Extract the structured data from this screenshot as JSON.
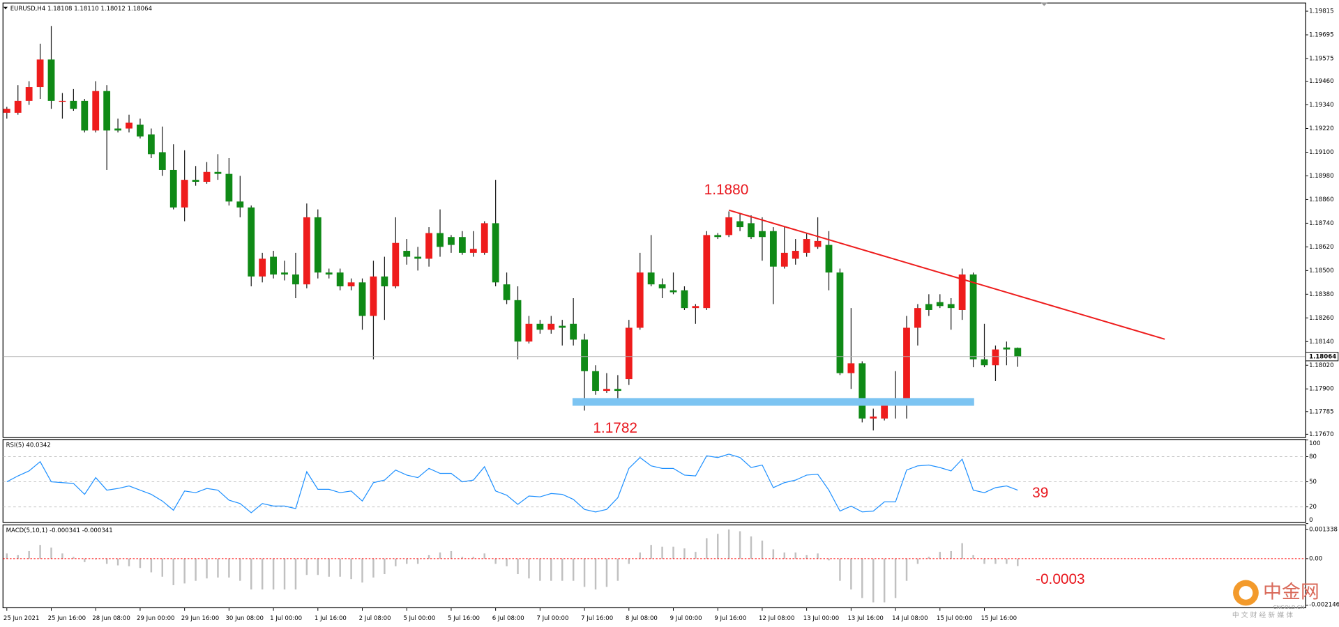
{
  "chart_data": [
    {
      "type": "candlestick",
      "header": "EURUSD,H4  1.18108 1.18110 1.18012 1.18064",
      "categories": [
        "25 Jun 2021",
        null,
        null,
        null,
        "25 Jun 16:00",
        null,
        null,
        null,
        "28 Jun 08:00",
        null,
        null,
        null,
        "29 Jun 00:00",
        null,
        null,
        null,
        "29 Jun 16:00",
        null,
        null,
        null,
        "30 Jun 08:00",
        null,
        null,
        null,
        "1 Jul 00:00",
        null,
        null,
        null,
        "1 Jul 16:00",
        null,
        null,
        null,
        "2 Jul 08:00",
        null,
        null,
        null,
        "5 Jul 00:00",
        null,
        null,
        null,
        "5 Jul 16:00",
        null,
        null,
        null,
        "6 Jul 08:00",
        null,
        null,
        null,
        "7 Jul 00:00",
        null,
        null,
        null,
        "7 Jul 16:00",
        null,
        null,
        null,
        "8 Jul 08:00",
        null,
        null,
        null,
        "9 Jul 00:00",
        null,
        null,
        null,
        "9 Jul 16:00",
        null,
        null,
        null,
        "12 Jul 08:00",
        null,
        null,
        null,
        "13 Jul 00:00",
        null,
        null,
        null,
        "13 Jul 16:00",
        null,
        null,
        null,
        "14 Jul 08:00",
        null,
        null,
        null,
        "15 Jul 00:00",
        null,
        null,
        null,
        "15 Jul 16:00",
        null,
        null,
        null
      ],
      "open": [
        1.193,
        1.193,
        1.1936,
        1.1943,
        1.1957,
        1.1936,
        1.1936,
        1.1936,
        1.1921,
        1.1941,
        1.1922,
        1.1922,
        1.1924,
        1.1919,
        1.191,
        1.1901,
        1.1882,
        1.1896,
        1.1895,
        1.19,
        1.1899,
        1.1885,
        1.1882,
        1.1847,
        1.1857,
        1.1849,
        1.1848,
        1.1843,
        1.1877,
        1.1849,
        1.1849,
        1.1842,
        1.1844,
        1.1827,
        1.1847,
        1.1842,
        1.186,
        1.1857,
        1.1856,
        1.1869,
        1.1867,
        1.1867,
        1.1859,
        1.1859,
        1.1874,
        1.1843,
        1.1835,
        1.1814,
        1.1823,
        1.182,
        1.1822,
        1.1823,
        1.1815,
        1.1799,
        1.1789,
        1.179,
        1.1795,
        1.1821,
        1.1849,
        1.1843,
        1.184,
        1.184,
        1.1831,
        1.1831,
        1.1868,
        1.1868,
        1.1875,
        1.1874,
        1.187,
        1.187,
        1.1852,
        1.1856,
        1.1859,
        1.1862,
        1.1863,
        1.1849,
        1.1798,
        1.1803,
        1.1775,
        1.1775,
        1.1783,
        1.1783,
        1.1821,
        1.1833,
        1.1834,
        1.1833,
        1.183,
        1.1848,
        1.1805,
        1.1802,
        1.1811,
        1.18108
      ],
      "high": [
        1.1933,
        1.1944,
        1.1946,
        1.1965,
        1.1974,
        1.194,
        1.1942,
        1.1937,
        1.1946,
        1.1944,
        1.1927,
        1.1929,
        1.1927,
        1.1922,
        1.1923,
        1.1914,
        1.1911,
        1.1903,
        1.1905,
        1.1909,
        1.1907,
        1.1898,
        1.1883,
        1.1859,
        1.186,
        1.1855,
        1.1859,
        1.1884,
        1.1881,
        1.1851,
        1.1851,
        1.1846,
        1.1846,
        1.1855,
        1.1857,
        1.1877,
        1.1866,
        1.1862,
        1.1872,
        1.1881,
        1.1868,
        1.187,
        1.187,
        1.1875,
        1.1896,
        1.1849,
        1.1842,
        1.1827,
        1.1825,
        1.1827,
        1.1825,
        1.1836,
        1.1818,
        1.1802,
        1.1798,
        1.1797,
        1.1825,
        1.1859,
        1.1868,
        1.1846,
        1.1849,
        1.1842,
        1.1833,
        1.187,
        1.1869,
        1.188,
        1.1879,
        1.1878,
        1.1877,
        1.1872,
        1.1872,
        1.1866,
        1.1869,
        1.1877,
        1.187,
        1.1851,
        1.1831,
        1.1804,
        1.178,
        1.1784,
        1.1799,
        1.1827,
        1.1833,
        1.1838,
        1.1838,
        1.1836,
        1.1851,
        1.1849,
        1.1823,
        1.1812,
        1.1814,
        1.1811
      ],
      "low": [
        1.1927,
        1.1929,
        1.1934,
        1.1937,
        1.1932,
        1.1927,
        1.1931,
        1.192,
        1.192,
        1.1901,
        1.192,
        1.192,
        1.1917,
        1.1907,
        1.1898,
        1.1881,
        1.1875,
        1.1893,
        1.1894,
        1.1896,
        1.1883,
        1.1877,
        1.1842,
        1.1844,
        1.1846,
        1.1845,
        1.1836,
        1.1841,
        1.1846,
        1.1846,
        1.184,
        1.184,
        1.182,
        1.1805,
        1.1825,
        1.1841,
        1.1853,
        1.185,
        1.1852,
        1.1857,
        1.1859,
        1.1858,
        1.1857,
        1.1858,
        1.1842,
        1.1833,
        1.1805,
        1.1813,
        1.1818,
        1.1818,
        1.1812,
        1.1812,
        1.1779,
        1.1787,
        1.1788,
        1.1782,
        1.1792,
        1.182,
        1.1842,
        1.1836,
        1.1838,
        1.183,
        1.1823,
        1.183,
        1.1866,
        1.1867,
        1.187,
        1.1866,
        1.1855,
        1.1833,
        1.1851,
        1.1853,
        1.1857,
        1.1861,
        1.184,
        1.1797,
        1.179,
        1.1773,
        1.1769,
        1.1774,
        1.1775,
        1.1775,
        1.1812,
        1.1827,
        1.1831,
        1.182,
        1.1825,
        1.1801,
        1.1801,
        1.1794,
        1.1802,
        1.18012
      ],
      "close": [
        1.1932,
        1.1936,
        1.1943,
        1.1957,
        1.1936,
        1.1936,
        1.1932,
        1.1921,
        1.1941,
        1.1921,
        1.1921,
        1.1925,
        1.1918,
        1.1909,
        1.1901,
        1.1882,
        1.1896,
        1.1895,
        1.19,
        1.1899,
        1.1885,
        1.1882,
        1.1847,
        1.1856,
        1.1848,
        1.1848,
        1.1843,
        1.1877,
        1.1849,
        1.1848,
        1.1842,
        1.1844,
        1.1827,
        1.1847,
        1.1842,
        1.1864,
        1.1857,
        1.1856,
        1.1869,
        1.1862,
        1.1863,
        1.1859,
        1.1861,
        1.1874,
        1.1844,
        1.1835,
        1.1814,
        1.1823,
        1.182,
        1.1823,
        1.1821,
        1.1815,
        1.1799,
        1.1789,
        1.179,
        1.1789,
        1.1821,
        1.1849,
        1.1843,
        1.1841,
        1.1839,
        1.1831,
        1.1832,
        1.1868,
        1.1867,
        1.1877,
        1.1872,
        1.1867,
        1.1867,
        1.1852,
        1.1859,
        1.186,
        1.1866,
        1.1865,
        1.1849,
        1.1798,
        1.1803,
        1.1775,
        1.1776,
        1.1783,
        1.1784,
        1.1821,
        1.1831,
        1.183,
        1.1832,
        1.1831,
        1.1848,
        1.1805,
        1.1802,
        1.181,
        1.181,
        1.18064
      ],
      "up_color": "#ee1c1c",
      "down_color": "#0f8a16",
      "wick_color": "#1a1a1a",
      "price_line_color": "#b0b0b0",
      "ylim": [
        1.1765,
        1.1985
      ],
      "yticks": [
        1.19815,
        1.19695,
        1.19575,
        {
          "value": 1.1946,
          "label": "1.19460"
        },
        {
          "value": 1.1934,
          "label": "1.19340"
        },
        {
          "value": 1.1922,
          "label": "1.19220"
        },
        {
          "value": 1.191,
          "label": "1.19100"
        },
        {
          "value": 1.1898,
          "label": "1.18980"
        },
        {
          "value": 1.1886,
          "label": "1.18860"
        },
        {
          "value": 1.1874,
          "label": "1.18740"
        },
        {
          "value": 1.1862,
          "label": "1.18620"
        },
        {
          "value": 1.185,
          "label": "1.18500"
        },
        {
          "value": 1.1838,
          "label": "1.18380"
        },
        {
          "value": 1.1826,
          "label": "1.18260"
        },
        {
          "value": 1.1814,
          "label": "1.18140"
        },
        {
          "value": 1.1802,
          "label": "1.18020"
        },
        {
          "value": 1.179,
          "label": "1.17900"
        },
        1.17785,
        {
          "value": 1.1767,
          "label": "1.17670"
        }
      ],
      "annotations": [
        {
          "text": "1.1880"
        },
        {
          "text": "1.1782"
        }
      ]
    },
    {
      "type": "line",
      "title": "RSI(5) 40.0342",
      "color": "#1e90ff",
      "values": [
        50,
        57,
        63,
        74,
        50,
        49,
        48,
        35,
        55,
        40,
        42,
        45,
        40,
        35,
        27,
        16,
        39,
        37,
        42,
        40,
        28,
        24,
        13,
        24,
        21,
        21,
        18,
        62,
        41,
        41,
        37,
        39,
        27,
        49,
        52,
        64,
        58,
        55,
        66,
        60,
        60,
        50,
        52,
        68,
        39,
        34,
        23,
        33,
        32,
        36,
        35,
        29,
        17,
        14,
        17,
        31,
        66,
        79,
        69,
        66,
        66,
        58,
        57,
        81,
        79,
        83,
        79,
        67,
        70,
        43,
        49,
        52,
        58,
        59,
        40,
        15,
        21,
        14,
        15,
        26,
        26,
        64,
        69,
        70,
        67,
        63,
        77,
        40,
        37,
        43,
        45,
        40.0342
      ],
      "ylim": [
        0,
        100
      ],
      "yticks": [
        0,
        20,
        50,
        80,
        100
      ],
      "levels": [
        20,
        50,
        80
      ],
      "level_color": "#c0c0c0",
      "annotations": [
        {
          "text": "39"
        }
      ]
    },
    {
      "type": "bar",
      "title": "MACD(5,10,1) -0.000341 -0.000341",
      "color": "#c0c0c0",
      "zero_line_color": "#ff0000",
      "values": [
        0.00024,
        0.00016,
        0.00035,
        0.00063,
        0.00051,
        0.00024,
        8e-05,
        -0.00016,
        -4e-05,
        -0.00024,
        -0.00031,
        -0.00035,
        -0.00043,
        -0.00063,
        -0.00083,
        -0.00122,
        -0.00114,
        -0.00102,
        -0.00091,
        -0.00087,
        -0.00087,
        -0.00102,
        -0.00142,
        -0.00142,
        -0.00142,
        -0.00142,
        -0.00142,
        -0.00075,
        -0.00075,
        -0.00083,
        -0.00083,
        -0.00094,
        -0.0011,
        -0.00087,
        -0.00071,
        -0.00035,
        -0.00024,
        -0.00024,
        0.00016,
        0.00028,
        0.00035,
        8e-05,
        8e-05,
        0.00024,
        -0.00024,
        -0.00035,
        -0.00071,
        -0.00091,
        -0.00102,
        -0.00102,
        -0.00102,
        -0.00102,
        -0.0013,
        -0.00142,
        -0.0013,
        -0.00102,
        -0.00024,
        0.00028,
        0.00063,
        0.00055,
        0.00055,
        0.00047,
        0.00031,
        0.00094,
        0.00114,
        0.00134,
        0.00126,
        0.00102,
        0.00083,
        0.00043,
        0.00028,
        0.00028,
        0.00016,
        0.00024,
        -8e-05,
        -0.00102,
        -0.00142,
        -0.00181,
        -0.00201,
        -0.00201,
        -0.00181,
        -0.00102,
        -0.00024,
        8e-05,
        0.00031,
        0.00035,
        0.00071,
        0.00016,
        -0.00024,
        -0.00024,
        -0.00024,
        -0.000341
      ],
      "ylim": [
        -0.00228,
        0.00157
      ],
      "yticks": [
        0.001338,
        {
          "value": 0,
          "label": "0.00"
        },
        -0.002146
      ],
      "annotations": [
        {
          "text": "-0.0003"
        }
      ]
    }
  ],
  "watermark": {
    "title": "中金网",
    "site": "CNGOLD.CN",
    "slogan": "中 文 财 经 新 媒 体"
  }
}
